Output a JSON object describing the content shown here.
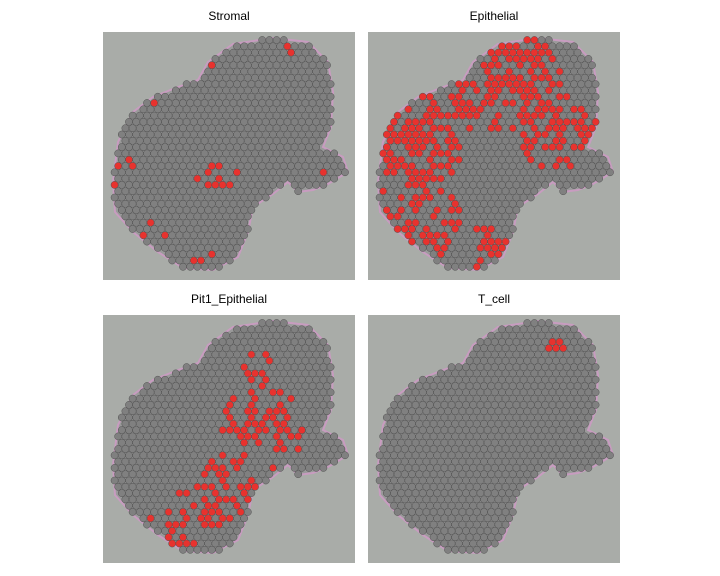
{
  "chart_data": [
    {
      "type": "scatter",
      "title": "Stromal",
      "series": [
        {
          "color": "#e8322e"
        },
        {
          "color": "#808080"
        }
      ],
      "xlabel": "",
      "ylabel": "",
      "hotspots": [
        {
          "cx": 0.43,
          "cy": 0.1,
          "r": 0.1
        },
        {
          "cx": 0.8,
          "cy": 0.07,
          "r": 0.08
        },
        {
          "cx": 0.18,
          "cy": 0.32,
          "r": 0.09
        },
        {
          "cx": 0.08,
          "cy": 0.55,
          "r": 0.08
        },
        {
          "cx": 0.45,
          "cy": 0.58,
          "r": 0.09
        },
        {
          "cx": 0.92,
          "cy": 0.6,
          "r": 0.08
        },
        {
          "cx": 0.2,
          "cy": 0.8,
          "r": 0.06
        },
        {
          "cx": 0.4,
          "cy": 0.92,
          "r": 0.06
        }
      ],
      "density": 0.25
    },
    {
      "type": "scatter",
      "title": "Epithelial",
      "series": [
        {
          "color": "#e8322e"
        },
        {
          "color": "#808080"
        }
      ],
      "xlabel": "",
      "ylabel": "",
      "hotspots": [
        {
          "cx": 0.55,
          "cy": 0.2,
          "r": 0.22
        },
        {
          "cx": 0.2,
          "cy": 0.4,
          "r": 0.22
        },
        {
          "cx": 0.2,
          "cy": 0.75,
          "r": 0.18
        },
        {
          "cx": 0.75,
          "cy": 0.4,
          "r": 0.16
        },
        {
          "cx": 0.48,
          "cy": 0.88,
          "r": 0.1
        }
      ],
      "density": 0.75
    },
    {
      "type": "scatter",
      "title": "Pit1_Epithelial",
      "series": [
        {
          "color": "#e8322e"
        },
        {
          "color": "#808080"
        }
      ],
      "xlabel": "",
      "ylabel": "",
      "hotspots": [
        {
          "cx": 0.62,
          "cy": 0.45,
          "r": 0.18
        },
        {
          "cx": 0.45,
          "cy": 0.7,
          "r": 0.16
        },
        {
          "cx": 0.3,
          "cy": 0.82,
          "r": 0.12
        },
        {
          "cx": 0.62,
          "cy": 0.22,
          "r": 0.08
        }
      ],
      "density": 0.55
    },
    {
      "type": "scatter",
      "title": "T_cell",
      "series": [
        {
          "color": "#e8322e"
        },
        {
          "color": "#808080"
        }
      ],
      "xlabel": "",
      "ylabel": "",
      "hotspots": [
        {
          "cx": 0.75,
          "cy": 0.13,
          "r": 0.04
        }
      ],
      "density": 0.9
    }
  ]
}
